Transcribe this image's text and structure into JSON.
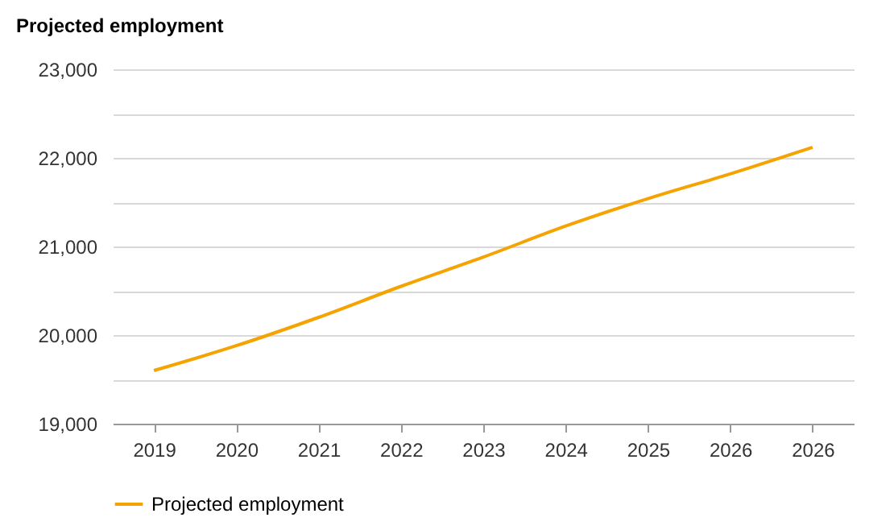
{
  "chart_data": {
    "type": "line",
    "title": "Projected employment",
    "categories": [
      "2019",
      "2020",
      "2021",
      "2022",
      "2023",
      "2024",
      "2025",
      "2026",
      "2026"
    ],
    "series": [
      {
        "name": "Projected employment",
        "color": "#f5a300",
        "values": [
          19600,
          19880,
          20200,
          20550,
          20880,
          21230,
          21540,
          21820,
          22120
        ]
      }
    ],
    "ylim": [
      19000,
      23000
    ],
    "yticks": [
      {
        "value": 19000,
        "label": "19,000"
      },
      {
        "value": 19500,
        "label": null
      },
      {
        "value": 20000,
        "label": "20,000"
      },
      {
        "value": 20500,
        "label": null
      },
      {
        "value": 21000,
        "label": "21,000"
      },
      {
        "value": 21500,
        "label": null
      },
      {
        "value": 22000,
        "label": "22,000"
      },
      {
        "value": 22500,
        "label": null
      },
      {
        "value": 23000,
        "label": "23,000"
      }
    ],
    "grid": "y",
    "legend": "bottom",
    "marker": "none",
    "line_style": "solid"
  }
}
